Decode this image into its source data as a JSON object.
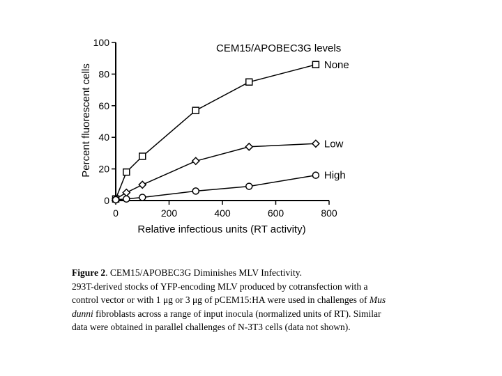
{
  "chart_data": {
    "type": "line",
    "title": "CEM15/APOBEC3G levels",
    "xlabel": "Relative infectious units (RT activity)",
    "ylabel": "Percent fluorescent cells",
    "xlim": [
      0,
      800
    ],
    "ylim": [
      0,
      100
    ],
    "xticks": [
      0,
      200,
      400,
      600,
      800
    ],
    "yticks": [
      0,
      20,
      40,
      60,
      80,
      100
    ],
    "grid": false,
    "series": [
      {
        "name": "None",
        "marker": "square",
        "x": [
          0,
          40,
          100,
          300,
          500,
          750
        ],
        "y": [
          1,
          18,
          28,
          57,
          75,
          86
        ]
      },
      {
        "name": "Low",
        "marker": "diamond",
        "x": [
          0,
          40,
          100,
          300,
          500,
          750
        ],
        "y": [
          1,
          5,
          10,
          25,
          34,
          36
        ]
      },
      {
        "name": "High",
        "marker": "circle",
        "x": [
          0,
          40,
          100,
          300,
          500,
          750
        ],
        "y": [
          0.5,
          1,
          2,
          6,
          9,
          16
        ]
      }
    ]
  },
  "caption": {
    "label": "Figure 2",
    "title": ". CEM15/APOBEC3G Diminishes MLV Infectivity.",
    "line2": "293T-derived stocks of YFP-encoding MLV produced by cotransfection with a",
    "line3": "control vector or with 1 μg or 3 μg of pCEM15:HA were used in challenges of",
    "line3_italic": "Mus",
    "line4_italic": "dunni",
    "line4": " fibroblasts across a range of input inocula (normalized units of RT). Similar",
    "line5": "data were obtained in parallel challenges of N-3T3 cells (data not shown)."
  }
}
